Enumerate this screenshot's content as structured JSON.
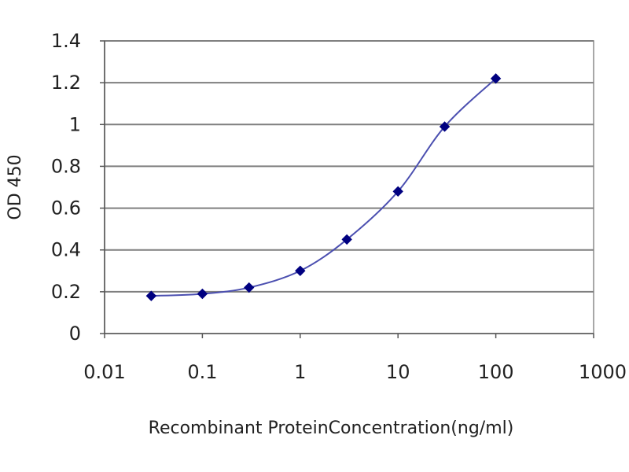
{
  "chart_data": {
    "type": "line",
    "title": "",
    "xlabel": "Recombinant ProteinConcentration(ng/ml)",
    "ylabel": "OD 450",
    "x_scale": "log",
    "xlim": [
      0.01,
      1000
    ],
    "ylim": [
      0,
      1.4
    ],
    "x_ticks": [
      "0.01",
      "0.1",
      "1",
      "10",
      "100",
      "1000"
    ],
    "y_ticks": [
      "0",
      "0.2",
      "0.4",
      "0.6",
      "0.8",
      "1",
      "1.2",
      "1.4"
    ],
    "grid": "horizontal",
    "legend": "none",
    "series": [
      {
        "color": "#000080",
        "line_color": "#4b4fb0",
        "x": [
          0.03,
          0.1,
          0.3,
          1,
          3,
          10,
          30,
          100
        ],
        "y": [
          0.18,
          0.19,
          0.22,
          0.3,
          0.45,
          0.68,
          0.99,
          1.22
        ]
      }
    ]
  }
}
